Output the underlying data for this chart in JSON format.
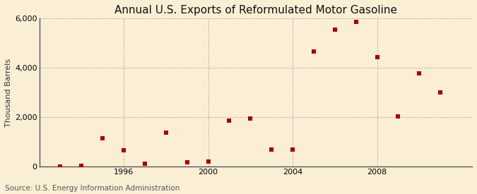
{
  "title": "Annual U.S. Exports of Reformulated Motor Gasoline",
  "ylabel": "Thousand Barrels",
  "source": "Source: U.S. Energy Information Administration",
  "background_color": "#faefd4",
  "plot_bg_color": "#faefd4",
  "years": [
    1993,
    1994,
    1995,
    1996,
    1997,
    1998,
    1999,
    2000,
    2001,
    2002,
    2003,
    2004,
    2005,
    2006,
    2007,
    2008,
    2009,
    2010,
    2011
  ],
  "values": [
    5,
    30,
    1150,
    660,
    110,
    1380,
    175,
    200,
    1870,
    1950,
    700,
    680,
    4660,
    5550,
    5850,
    4420,
    2020,
    3780,
    3000
  ],
  "marker_color": "#aa0000",
  "marker_size": 18,
  "ylim": [
    0,
    6001
  ],
  "yticks": [
    0,
    2000,
    4000,
    6000
  ],
  "ytick_labels": [
    "0",
    "2,000",
    "4,000",
    "6,000"
  ],
  "xlim": [
    1992.0,
    2012.5
  ],
  "xtick_positions": [
    1996,
    2000,
    2004,
    2008
  ],
  "grid_color": "#aaaaaa",
  "title_fontsize": 11,
  "axis_fontsize": 8,
  "source_fontsize": 7.5
}
